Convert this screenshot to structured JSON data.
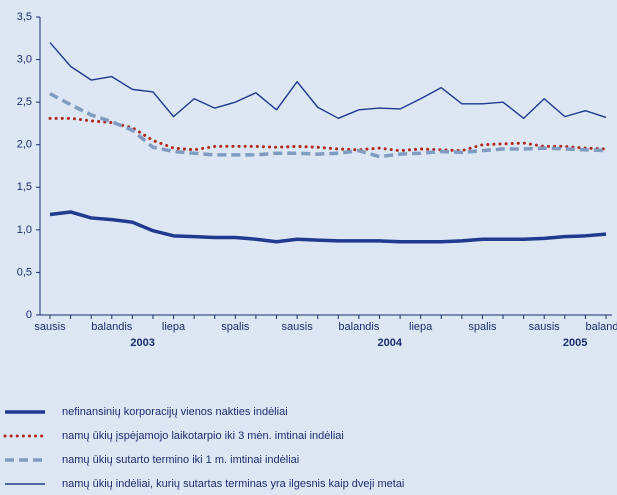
{
  "chart_data": {
    "type": "line",
    "categories": [
      "sausis",
      null,
      null,
      "balandis",
      null,
      null,
      "liepa",
      null,
      null,
      "spalis",
      null,
      null,
      "sausis",
      null,
      null,
      "balandis",
      null,
      null,
      "liepa",
      null,
      null,
      "spalis",
      null,
      null,
      "sausis",
      null,
      null,
      "balandis"
    ],
    "years": [
      "2003",
      "2004",
      "2005"
    ],
    "ylim": [
      0,
      3.5
    ],
    "yticks": [
      0,
      {
        "value": 0.5,
        "label": "0,5"
      },
      {
        "value": 1,
        "label": "1,0"
      },
      {
        "value": 1.5,
        "label": "1,5"
      },
      {
        "value": 2,
        "label": "2,0"
      },
      {
        "value": 2.5,
        "label": "2,5"
      },
      {
        "value": 3,
        "label": "3,0"
      },
      {
        "value": 3.5,
        "label": "3,5"
      }
    ],
    "series": [
      {
        "name": "nefinansinių korporacijų vienos nakties indėliai",
        "color": "#1f3a8f",
        "style": "thick",
        "values": [
          1.18,
          1.21,
          1.14,
          1.12,
          1.09,
          0.99,
          0.93,
          0.92,
          0.91,
          0.91,
          0.89,
          0.86,
          0.89,
          0.88,
          0.87,
          0.87,
          0.87,
          0.86,
          0.86,
          0.86,
          0.87,
          0.89,
          0.89,
          0.89,
          0.9,
          0.92,
          0.93,
          0.95
        ]
      },
      {
        "name": "namų ūkių įspėjamojo laikotarpio iki 3 mėn. imtinai indėliai",
        "color": "#b0281e",
        "style": "dotted",
        "values": [
          2.31,
          2.31,
          2.28,
          2.26,
          2.2,
          2.05,
          1.96,
          1.94,
          1.98,
          1.98,
          1.98,
          1.97,
          1.98,
          1.97,
          1.95,
          1.94,
          1.96,
          1.93,
          1.95,
          1.94,
          1.93,
          2.0,
          2.01,
          2.02,
          1.98,
          1.98,
          1.96,
          1.95
        ]
      },
      {
        "name": "namų ūkių sutarto termino iki 1 m. imtinai indėliai",
        "color": "#7f9cc0",
        "style": "dashed",
        "values": [
          2.6,
          2.47,
          2.35,
          2.27,
          2.17,
          1.97,
          1.92,
          1.9,
          1.88,
          1.88,
          1.88,
          1.9,
          1.9,
          1.89,
          1.9,
          1.93,
          1.86,
          1.89,
          1.9,
          1.92,
          1.91,
          1.93,
          1.95,
          1.95,
          1.96,
          1.95,
          1.94,
          1.93
        ]
      },
      {
        "name": "namų ūkių indėliai, kurių sutartas terminas yra ilgesnis kaip dveji metai",
        "color": "#1f3a8f",
        "style": "thin",
        "values": [
          3.2,
          2.92,
          2.76,
          2.8,
          2.65,
          2.62,
          2.33,
          2.54,
          2.43,
          2.5,
          2.61,
          2.41,
          2.74,
          2.44,
          2.31,
          2.41,
          2.43,
          2.42,
          2.54,
          2.67,
          2.48,
          2.48,
          2.5,
          2.31,
          2.54,
          2.33,
          2.4,
          2.32
        ]
      }
    ]
  }
}
